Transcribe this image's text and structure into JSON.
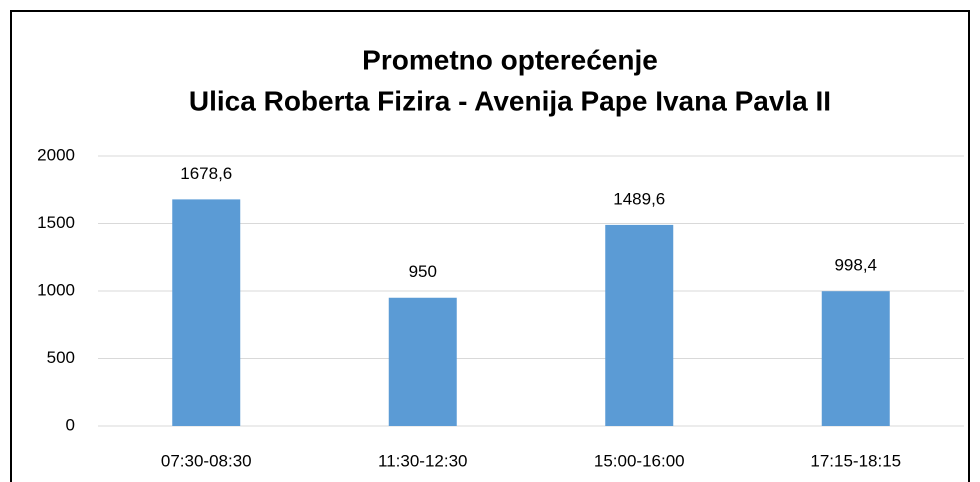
{
  "chart_data": {
    "type": "bar",
    "title": "Prometno opterećenje",
    "subtitle": "Ulica Roberta Fizira - Avenija Pape Ivana Pavla II",
    "categories": [
      "07:30-08:30",
      "11:30-12:30",
      "15:00-16:00",
      "17:15-18:15"
    ],
    "values": [
      1678.6,
      950,
      1489.6,
      998.4
    ],
    "value_labels": [
      "1678,6",
      "950",
      "1489,6",
      "998,4"
    ],
    "color": "#5b9bd5",
    "ylim": [
      0,
      2000
    ],
    "yticks": [
      0,
      500,
      1000,
      1500,
      2000
    ],
    "grid": true
  }
}
